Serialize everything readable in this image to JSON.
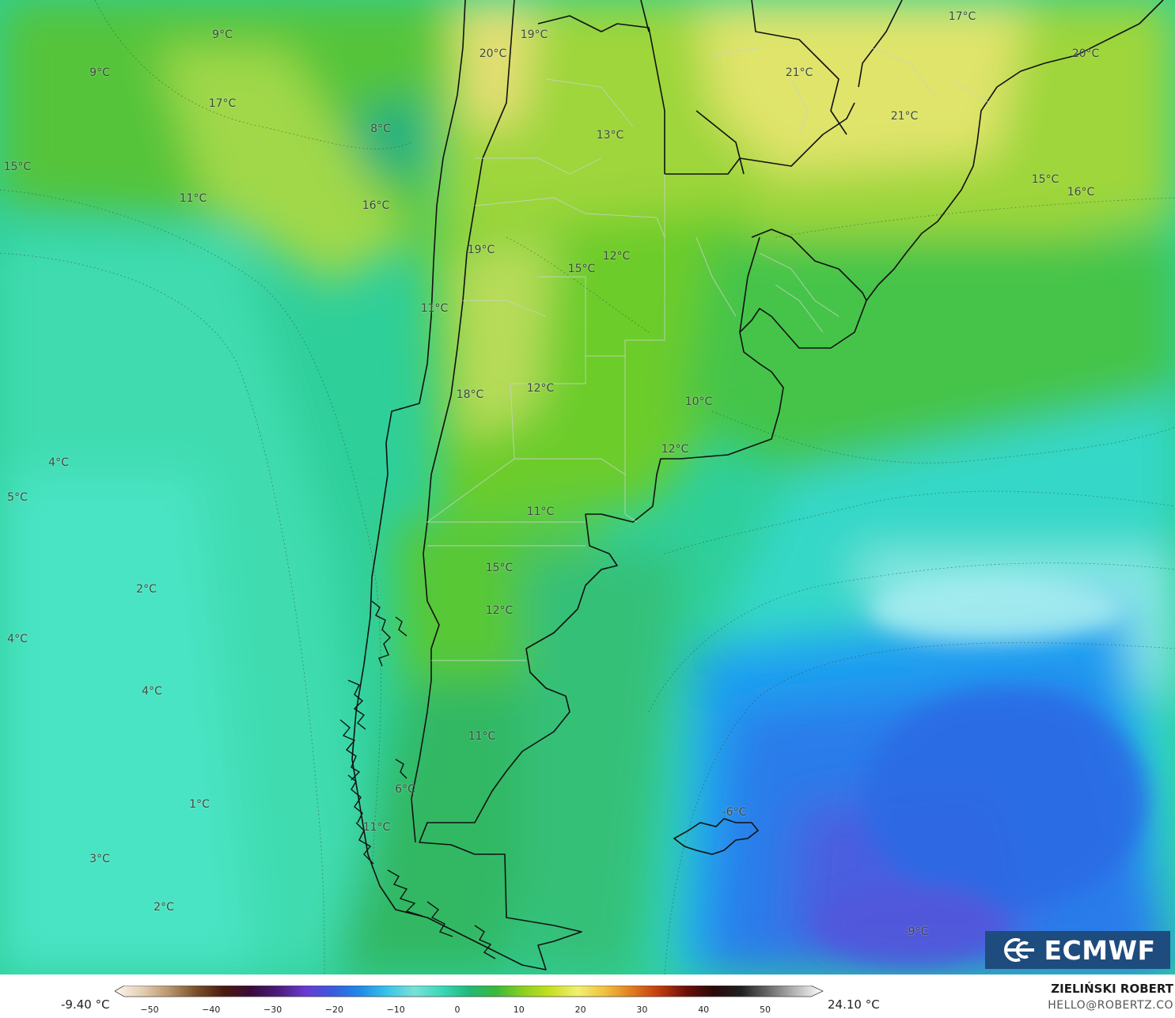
{
  "map": {
    "labels": [
      {
        "text": "9°C"
      },
      {
        "text": "19°C"
      },
      {
        "text": "20°C"
      },
      {
        "text": "17°C"
      },
      {
        "text": "20°C"
      },
      {
        "text": "9°C"
      },
      {
        "text": "21°C"
      },
      {
        "text": "17°C"
      },
      {
        "text": "8°C"
      },
      {
        "text": "21°C"
      },
      {
        "text": "13°C"
      },
      {
        "text": "15°C"
      },
      {
        "text": "11°C"
      },
      {
        "text": "16°C"
      },
      {
        "text": "15°C"
      },
      {
        "text": "16°C"
      },
      {
        "text": "19°C"
      },
      {
        "text": "12°C"
      },
      {
        "text": "15°C"
      },
      {
        "text": "11°C"
      },
      {
        "text": "12°C"
      },
      {
        "text": "18°C"
      },
      {
        "text": "10°C"
      },
      {
        "text": "12°C"
      },
      {
        "text": "4°C"
      },
      {
        "text": "5°C"
      },
      {
        "text": "11°C"
      },
      {
        "text": "15°C"
      },
      {
        "text": "2°C"
      },
      {
        "text": "12°C"
      },
      {
        "text": "4°C"
      },
      {
        "text": "4°C"
      },
      {
        "text": "11°C"
      },
      {
        "text": "6°C"
      },
      {
        "text": "1°C"
      },
      {
        "text": "-6°C"
      },
      {
        "text": "11°C"
      },
      {
        "text": "3°C"
      },
      {
        "text": "2°C"
      },
      {
        "text": "-9°C"
      }
    ]
  },
  "logo": {
    "text": "ECMWF"
  },
  "legend": {
    "min_label": "-9.40 °C",
    "max_label": "24.10 °C",
    "ticks": [
      "−50",
      "−40",
      "−30",
      "−20",
      "−10",
      "0",
      "10",
      "20",
      "30",
      "40",
      "50"
    ],
    "colors": [
      "#fdf6ee",
      "#e3cfb4",
      "#b9956b",
      "#7a4f2a",
      "#4a1a0e",
      "#3a0a3a",
      "#4a1c7a",
      "#6a3ad0",
      "#3a5ae0",
      "#1f8ae8",
      "#3ac4e8",
      "#7ae0d8",
      "#3ad8b8",
      "#20b87a",
      "#3ab83a",
      "#8ad020",
      "#c8e020",
      "#f0f070",
      "#f0c040",
      "#e07a20",
      "#c03a10",
      "#6a1008",
      "#2a0808",
      "#202020",
      "#6a6a6a",
      "#b8b8b8",
      "#ffffff"
    ]
  },
  "credit": {
    "name": "ZIELIŃSKI ROBERT",
    "contact": "HELLO@ROBERTZ.CO"
  }
}
